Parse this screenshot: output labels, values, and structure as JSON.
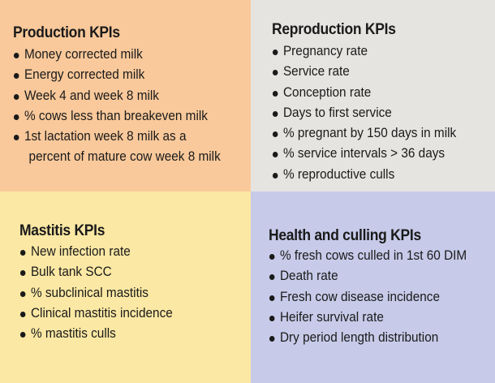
{
  "production": {
    "title": "Production KPIs",
    "items": [
      "Money corrected milk",
      "Energy corrected milk",
      "Week 4 and week 8 milk",
      "% cows less than breakeven milk",
      "1st lactation week 8 milk as a",
      "percent of mature cow week 8 milk"
    ]
  },
  "reproduction": {
    "title": "Reproduction KPIs",
    "items": [
      "Pregnancy rate",
      "Service rate",
      "Conception rate",
      "Days to first service",
      "% pregnant by 150 days in milk",
      "% service intervals > 36 days",
      "% reproductive culls"
    ]
  },
  "mastitis": {
    "title": "Mastitis KPIs",
    "items": [
      "New infection rate",
      "Bulk tank SCC",
      "% subclinical mastitis",
      "Clinical mastitis incidence",
      "% mastitis culls"
    ]
  },
  "health": {
    "title": "Health and culling KPIs",
    "items": [
      "% fresh cows culled in 1st 60 DIM",
      "Death rate",
      "Fresh cow disease incidence",
      "Heifer survival rate",
      "Dry period length distribution"
    ]
  },
  "colors": {
    "production_bg": "#f9c99b",
    "reproduction_bg": "#e6e4e1",
    "mastitis_bg": "#fbe8a4",
    "health_bg": "#c7cbe9"
  }
}
